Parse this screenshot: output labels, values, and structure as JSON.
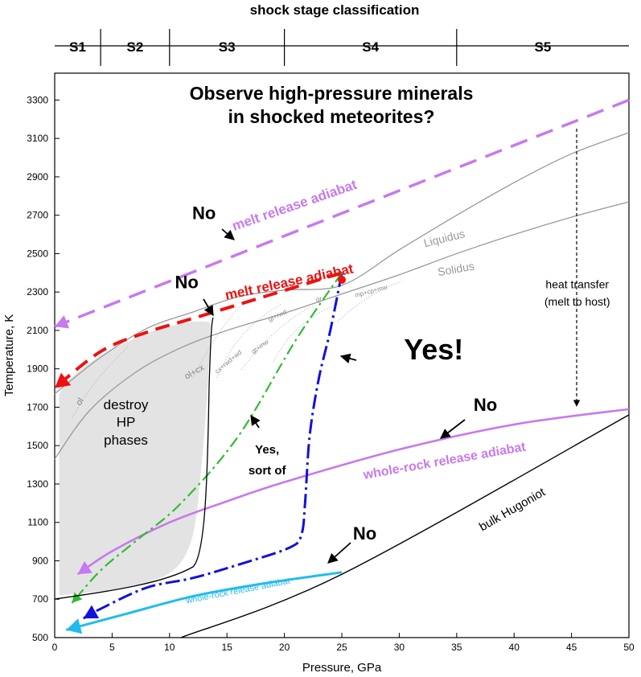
{
  "chart_data": {
    "type": "line",
    "title": "Observe high-pressure minerals in shocked meteorites?",
    "title_lines": [
      "Observe high-pressure minerals",
      "in shocked meteorites?"
    ],
    "xlabel": "Pressure, GPa",
    "ylabel": "Temperature, K",
    "xlim": [
      0,
      50
    ],
    "ylim": [
      500,
      3440
    ],
    "x_ticks": [
      0,
      5,
      10,
      15,
      20,
      25,
      30,
      35,
      40,
      45,
      50
    ],
    "y_ticks": [
      500,
      700,
      900,
      1100,
      1300,
      1500,
      1700,
      1900,
      2100,
      2300,
      2500,
      2700,
      2900,
      3100,
      3300
    ],
    "shock_stages": {
      "title": "shock stage classification",
      "stages": [
        {
          "label": "S1",
          "from": -4.8,
          "to": 4
        },
        {
          "label": "S2",
          "from": 4,
          "to": 10
        },
        {
          "label": "S3",
          "from": 10,
          "to": 20
        },
        {
          "label": "S4",
          "from": 20,
          "to": 35
        },
        {
          "label": "S5",
          "from": 35,
          "to": 50
        }
      ]
    },
    "series": [
      {
        "name": "Liquidus",
        "color": "#999999",
        "points": [
          [
            0,
            1770
          ],
          [
            4,
            1960
          ],
          [
            8,
            2110
          ],
          [
            12,
            2195
          ],
          [
            16,
            2275
          ],
          [
            20,
            2310
          ],
          [
            25,
            2335
          ],
          [
            30,
            2520
          ],
          [
            35,
            2700
          ],
          [
            40,
            2870
          ],
          [
            45,
            3020
          ],
          [
            50,
            3130
          ]
        ]
      },
      {
        "name": "Solidus",
        "color": "#999999",
        "points": [
          [
            0,
            1430
          ],
          [
            3,
            1680
          ],
          [
            7,
            1880
          ],
          [
            11,
            2010
          ],
          [
            15,
            2100
          ],
          [
            20,
            2190
          ],
          [
            25,
            2290
          ],
          [
            30,
            2390
          ],
          [
            35,
            2500
          ],
          [
            40,
            2600
          ],
          [
            45,
            2690
          ],
          [
            50,
            2770
          ]
        ]
      },
      {
        "name": "bulk Hugoniot",
        "color": "#000000",
        "points": [
          [
            11,
            500
          ],
          [
            25,
            830
          ],
          [
            50,
            1660
          ]
        ]
      },
      {
        "name": "melt release adiabat (outer)",
        "color": "#c779ee",
        "points": [
          [
            50,
            3300
          ],
          [
            0,
            2120
          ]
        ]
      },
      {
        "name": "melt release adiabat",
        "color": "#ee1111",
        "points": [
          [
            25,
            2400
          ],
          [
            13,
            2180
          ],
          [
            8,
            2090
          ],
          [
            4,
            1990
          ],
          [
            0,
            1800
          ]
        ]
      },
      {
        "name": "whole-rock release adiabat",
        "color": "#c779ee",
        "points": [
          [
            50,
            1690
          ],
          [
            40,
            1610
          ],
          [
            30,
            1480
          ],
          [
            20,
            1310
          ],
          [
            15,
            1210
          ],
          [
            10,
            1100
          ],
          [
            5,
            950
          ],
          [
            2,
            830
          ]
        ]
      },
      {
        "name": "whole-rock release adiabat (cyan)",
        "color": "#22bbee",
        "points": [
          [
            25,
            840
          ],
          [
            18,
            780
          ],
          [
            12,
            715
          ],
          [
            6,
            620
          ],
          [
            1,
            540
          ]
        ]
      },
      {
        "name": "Yes! path",
        "color": "#1111dd",
        "points": [
          [
            25,
            2400
          ],
          [
            24,
            2100
          ],
          [
            23,
            1850
          ],
          [
            22.2,
            1550
          ],
          [
            21.8,
            1200
          ],
          [
            21.5,
            1040
          ],
          [
            20.5,
            970
          ],
          [
            16,
            880
          ],
          [
            12,
            810
          ],
          [
            8,
            760
          ],
          [
            4,
            650
          ],
          [
            2.5,
            600
          ]
        ]
      },
      {
        "name": "Yes, sort of path",
        "color": "#33bb33",
        "points": [
          [
            25,
            2400
          ],
          [
            21,
            2050
          ],
          [
            16,
            1550
          ],
          [
            11,
            1200
          ],
          [
            7,
            1000
          ],
          [
            4,
            850
          ],
          [
            1.5,
            680
          ]
        ]
      }
    ],
    "annotations": [
      {
        "text": "Liquidus",
        "x": 34,
        "y": 2560,
        "color": "#999999"
      },
      {
        "text": "Solidus",
        "x": 35,
        "y": 2400,
        "color": "#999999"
      },
      {
        "text": "bulk Hugoniot",
        "x": 40,
        "y": 1150,
        "color": "#000000"
      },
      {
        "text": "melt release adiabat",
        "x": 21,
        "y": 2730,
        "color": "#c779ee"
      },
      {
        "text": "melt release adiabat",
        "x": 20.5,
        "y": 2330,
        "color": "#ee1111"
      },
      {
        "text": "whole-rock release adiabat",
        "x": 34,
        "y": 1400,
        "color": "#c779ee"
      },
      {
        "text": "whole-rock release adiabat",
        "x": 16,
        "y": 730,
        "color": "#22bbee"
      },
      {
        "text": "destroy",
        "x": 6.2,
        "y": 1690,
        "color": "#000000"
      },
      {
        "text": "HP",
        "x": 6.2,
        "y": 1600,
        "color": "#000000"
      },
      {
        "text": "phases",
        "x": 6.2,
        "y": 1505,
        "color": "#000000"
      },
      {
        "text": "heat transfer",
        "x": 45.5,
        "y": 2320,
        "color": "#000000"
      },
      {
        "text": "(melt to host)",
        "x": 45.5,
        "y": 2230,
        "color": "#000000"
      },
      {
        "text": "No",
        "x": 13,
        "y": 2680,
        "color": "#000000"
      },
      {
        "text": "No",
        "x": 11.5,
        "y": 2320,
        "color": "#000000"
      },
      {
        "text": "No",
        "x": 37.5,
        "y": 1680,
        "color": "#000000"
      },
      {
        "text": "No",
        "x": 27,
        "y": 1010,
        "color": "#000000"
      },
      {
        "text": "Yes!",
        "x": 33,
        "y": 1950,
        "color": "#000000"
      },
      {
        "text": "Yes,",
        "x": 18.5,
        "y": 1460,
        "color": "#000000"
      },
      {
        "text": "sort of",
        "x": 18.5,
        "y": 1350,
        "color": "#000000"
      }
    ],
    "phase_labels": [
      "ol",
      "ol+cx",
      "cx+rwd+wd",
      "gt+rwd",
      "gt+mw",
      "gt",
      "mp+cp+mw"
    ]
  }
}
